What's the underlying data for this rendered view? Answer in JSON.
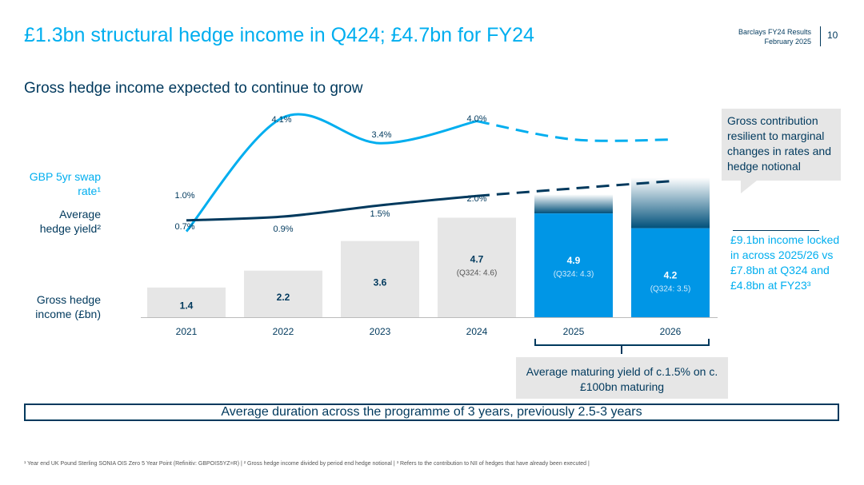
{
  "header": {
    "title": "£1.3bn structural hedge income in Q424; £4.7bn for FY24",
    "meta_line1": "Barclays FY24 Results",
    "meta_line2": "February 2025",
    "page_number": "10"
  },
  "subtitle": "Gross hedge income expected to continue to grow",
  "labels": {
    "swap_rate": "GBP 5yr swap rate¹",
    "hedge_yield": "Average hedge yield²",
    "gross_income": "Gross hedge income (£bn)"
  },
  "callout": "Gross contribution resilient to marginal changes in rates and hedge notional",
  "locked_note": "£9.1bn income locked in across 2025/26 vs £7.8bn at Q324 and £4.8bn at FY23³",
  "maturing_note": "Average maturing yield of c.1.5% on c.£100bn maturing",
  "duration_note": "Average duration across the programme of 3 years, previously 2.5-3 years",
  "footnote": "¹ Year end UK Pound Sterling SONIA OIS Zero 5 Year Point (Refinitiv: GBPOIS5YZ=R) | ² Gross hedge income divided by period end hedge notional | ³ Refers to the contribution to NII of hedges that have already been executed |",
  "colors": {
    "navy": "#00395d",
    "cyan": "#00aeef",
    "bar_grey": "#e6e6e6",
    "bar_blue": "#0096e6",
    "bar_dark": "#00507a"
  },
  "chart_data": {
    "type": "bar",
    "categories": [
      "2021",
      "2022",
      "2023",
      "2024",
      "2025",
      "2026"
    ],
    "series": [
      {
        "name": "Gross hedge income (£bn)",
        "values": [
          1.4,
          2.2,
          3.6,
          4.7,
          4.9,
          4.2
        ],
        "value_labels": [
          "1.4",
          "2.2",
          "3.6",
          "4.7",
          "4.9",
          "4.2"
        ],
        "sub_labels": [
          "",
          "",
          "",
          "(Q324: 4.6)",
          "(Q324: 4.3)",
          "(Q324: 3.5)"
        ],
        "locked_in": [
          false,
          false,
          false,
          false,
          true,
          true
        ]
      },
      {
        "name": "GBP 5yr swap rate",
        "type": "line",
        "values": [
          1.0,
          4.1,
          3.4,
          4.0,
          3.5,
          3.5
        ],
        "labels": [
          "1.0%",
          "4.1%",
          "3.4%",
          "4.0%",
          "",
          ""
        ],
        "projected_from": 3
      },
      {
        "name": "Average hedge yield",
        "type": "line",
        "values": [
          0.7,
          0.9,
          1.5,
          2.0,
          2.4,
          2.8
        ],
        "labels": [
          "0.7%",
          "0.9%",
          "1.5%",
          "2.0%",
          "",
          ""
        ],
        "projected_from": 3
      }
    ],
    "upside_estimate": {
      "2025": 5.8,
      "2026": 6.6
    },
    "xlabel": "",
    "ylabel": "£bn"
  }
}
